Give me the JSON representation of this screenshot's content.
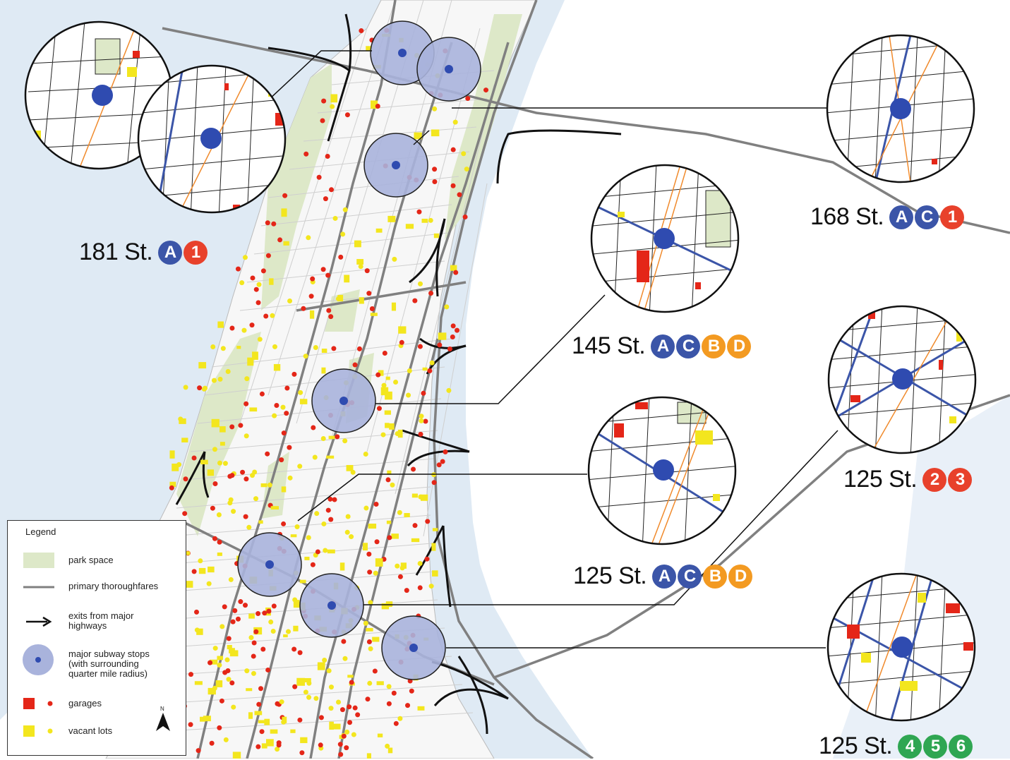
{
  "stations": [
    {
      "name": "181 St.",
      "lines": [
        {
          "label": "A",
          "color": "#3b55a8"
        },
        {
          "label": "1",
          "color": "#e8412b"
        }
      ]
    },
    {
      "name": "168 St.",
      "lines": [
        {
          "label": "A",
          "color": "#3b55a8"
        },
        {
          "label": "C",
          "color": "#3b55a8"
        },
        {
          "label": "1",
          "color": "#e8412b"
        }
      ]
    },
    {
      "name": "145 St.",
      "lines": [
        {
          "label": "A",
          "color": "#3b55a8"
        },
        {
          "label": "C",
          "color": "#3b55a8"
        },
        {
          "label": "B",
          "color": "#f39a21"
        },
        {
          "label": "D",
          "color": "#f39a21"
        }
      ]
    },
    {
      "name": "125 St.",
      "lines": [
        {
          "label": "2",
          "color": "#e8412b"
        },
        {
          "label": "3",
          "color": "#e8412b"
        }
      ]
    },
    {
      "name": "125 St.",
      "lines": [
        {
          "label": "A",
          "color": "#3b55a8"
        },
        {
          "label": "C",
          "color": "#3b55a8"
        },
        {
          "label": "B",
          "color": "#f39a21"
        },
        {
          "label": "D",
          "color": "#f39a21"
        }
      ]
    },
    {
      "name": "125 St.",
      "lines": [
        {
          "label": "4",
          "color": "#2fa652"
        },
        {
          "label": "5",
          "color": "#2fa652"
        },
        {
          "label": "6",
          "color": "#2fa652"
        }
      ]
    }
  ],
  "legend": {
    "title": "Legend",
    "items": {
      "park": "park space",
      "thoroughfares": "primary thoroughfares",
      "exits": "exits from major highways",
      "subway": "major subway stops (with surrounding quarter mile radius)",
      "garages": "garages",
      "vacant": "vacant lots"
    },
    "north": "N"
  },
  "colors": {
    "water": "#dfeaf4",
    "park": "#dde8c8",
    "subway_fill": "#a9b3dc",
    "subway_dot": "#2f4bb0",
    "garage": "#e42618",
    "vacant": "#f3e61e",
    "road": "#808080"
  }
}
